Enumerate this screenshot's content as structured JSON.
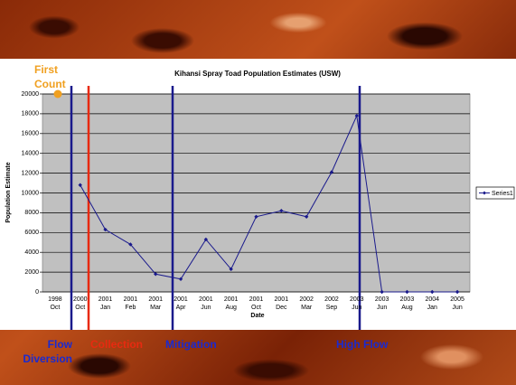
{
  "chart_data": {
    "type": "line",
    "title": "Kihansi Spray Toad Population Estimates (USW)",
    "x_label": "Date",
    "y_label": "Population Estimate",
    "categories": [
      "1998 Oct",
      "2000 Oct",
      "2001 Jan",
      "2001 Feb",
      "2001 Mar",
      "2001 Apr",
      "2001 Jun",
      "2001 Aug",
      "2001 Oct",
      "2001 Dec",
      "2002 Mar",
      "2002 Sep",
      "2003 Jun",
      "2003 Jun",
      "2003 Aug",
      "2004 Jan",
      "2005 Jun"
    ],
    "series": [
      {
        "name": "Series1",
        "color": "#1a1a8c",
        "values": [
          null,
          10800,
          6300,
          4800,
          1800,
          1300,
          5300,
          2300,
          7600,
          8200,
          7600,
          12100,
          17800,
          0,
          0,
          0,
          0
        ]
      }
    ],
    "ylim": [
      0,
      20000
    ],
    "yticks": [
      0,
      2000,
      4000,
      6000,
      8000,
      10000,
      12000,
      14000,
      16000,
      18000,
      20000
    ],
    "grid": true,
    "legend": "right",
    "plot_background": "#c0c0c0",
    "annotations": [
      {
        "text": "First Count",
        "color": "#f0a020"
      },
      {
        "text": "Flow Diversion",
        "color": "#1a2ad0"
      },
      {
        "text": "Collection",
        "color": "#e82a10"
      },
      {
        "text": "Mitigation",
        "color": "#1a2ad0"
      },
      {
        "text": "High Flow",
        "color": "#1a2ad0"
      }
    ]
  }
}
